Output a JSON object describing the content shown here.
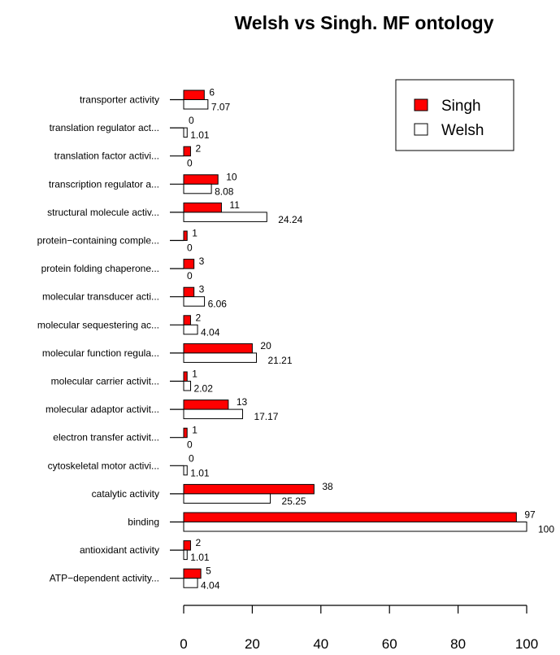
{
  "chart_data": {
    "type": "bar",
    "orientation": "horizontal",
    "title": "Welsh vs Singh. MF ontology",
    "xlabel": "",
    "ylabel": "",
    "xlim": [
      0,
      100
    ],
    "xticks": [
      "0",
      "20",
      "40",
      "60",
      "80",
      "100"
    ],
    "grid": false,
    "legend_position": "top-right",
    "categories": [
      "transporter activity",
      "translation regulator act...",
      "translation factor activi...",
      "transcription regulator a...",
      "structural molecule activ...",
      "protein−containing comple...",
      "protein folding chaperone...",
      "molecular transducer acti...",
      "molecular sequestering ac...",
      "molecular function regula...",
      "molecular carrier activit...",
      "molecular adaptor activit...",
      "electron transfer activit...",
      "cytoskeletal motor activi...",
      "catalytic activity",
      "binding",
      "antioxidant activity",
      "ATP−dependent activity..."
    ],
    "series": [
      {
        "name": "Singh",
        "color": "#ff0000",
        "values": [
          6,
          0,
          2,
          10,
          11,
          1,
          3,
          3,
          2,
          20,
          1,
          13,
          1,
          0,
          38,
          97,
          2,
          5
        ],
        "labels": [
          "6",
          "0",
          "2",
          "10",
          "11",
          "1",
          "3",
          "3",
          "2",
          "20",
          "1",
          "13",
          "1",
          "0",
          "38",
          "97",
          "2",
          "5"
        ]
      },
      {
        "name": "Welsh",
        "color": "#ffffff",
        "values": [
          7.07,
          1.01,
          0,
          8.08,
          24.24,
          0,
          0,
          6.06,
          4.04,
          21.21,
          2.02,
          17.17,
          0,
          1.01,
          25.25,
          100,
          1.01,
          4.04
        ],
        "labels": [
          "7.07",
          "1.01",
          "0",
          "8.08",
          "24.24",
          "0",
          "0",
          "6.06",
          "4.04",
          "21.21",
          "2.02",
          "17.17",
          "0",
          "1.01",
          "25.25",
          "100",
          "1.01",
          "4.04"
        ]
      }
    ]
  }
}
